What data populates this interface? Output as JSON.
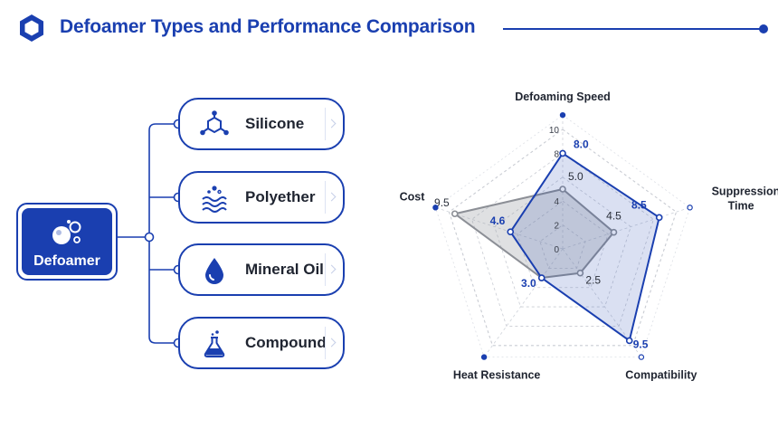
{
  "title": "Defoamer Types and Performance Comparison",
  "root": {
    "label": "Defoamer",
    "icon": "bubbles-icon"
  },
  "branches": [
    {
      "label": "Silicone",
      "icon": "molecule-icon"
    },
    {
      "label": "Polyether",
      "icon": "waves-icon"
    },
    {
      "label": "Mineral Oil",
      "icon": "oil-drop-icon"
    },
    {
      "label": "Compound",
      "icon": "flask-icon"
    }
  ],
  "colors": {
    "accent": "#1a3fb0",
    "series_blue": "#1a3fb0",
    "series_gray": "#8c8f96"
  },
  "chart_data": {
    "type": "radar",
    "axes": [
      "Defoaming Speed",
      "Suppression Time",
      "Compatibility",
      "Heat Resistance",
      "Cost"
    ],
    "axis_label_lines": [
      [
        "Defoaming Speed"
      ],
      [
        "Suppression",
        "Time"
      ],
      [
        "Compatibility"
      ],
      [
        "Heat Resistance"
      ],
      [
        "Cost"
      ]
    ],
    "range": [
      0,
      10
    ],
    "tick_labels": [
      "0",
      "2",
      "4",
      "8",
      "10"
    ],
    "grid": true,
    "series": [
      {
        "color": "#1a3fb0",
        "values": [
          8.0,
          8.5,
          9.5,
          3.0,
          4.6
        ],
        "labels": [
          "8.0",
          "8.5",
          "9.5",
          "3.0",
          "4.6"
        ]
      },
      {
        "color": "#8c8f96",
        "values": [
          5.0,
          4.5,
          2.5,
          3.0,
          9.5
        ],
        "labels": [
          "5.0",
          "4.5",
          "2.5",
          "",
          "9.5"
        ]
      }
    ]
  }
}
